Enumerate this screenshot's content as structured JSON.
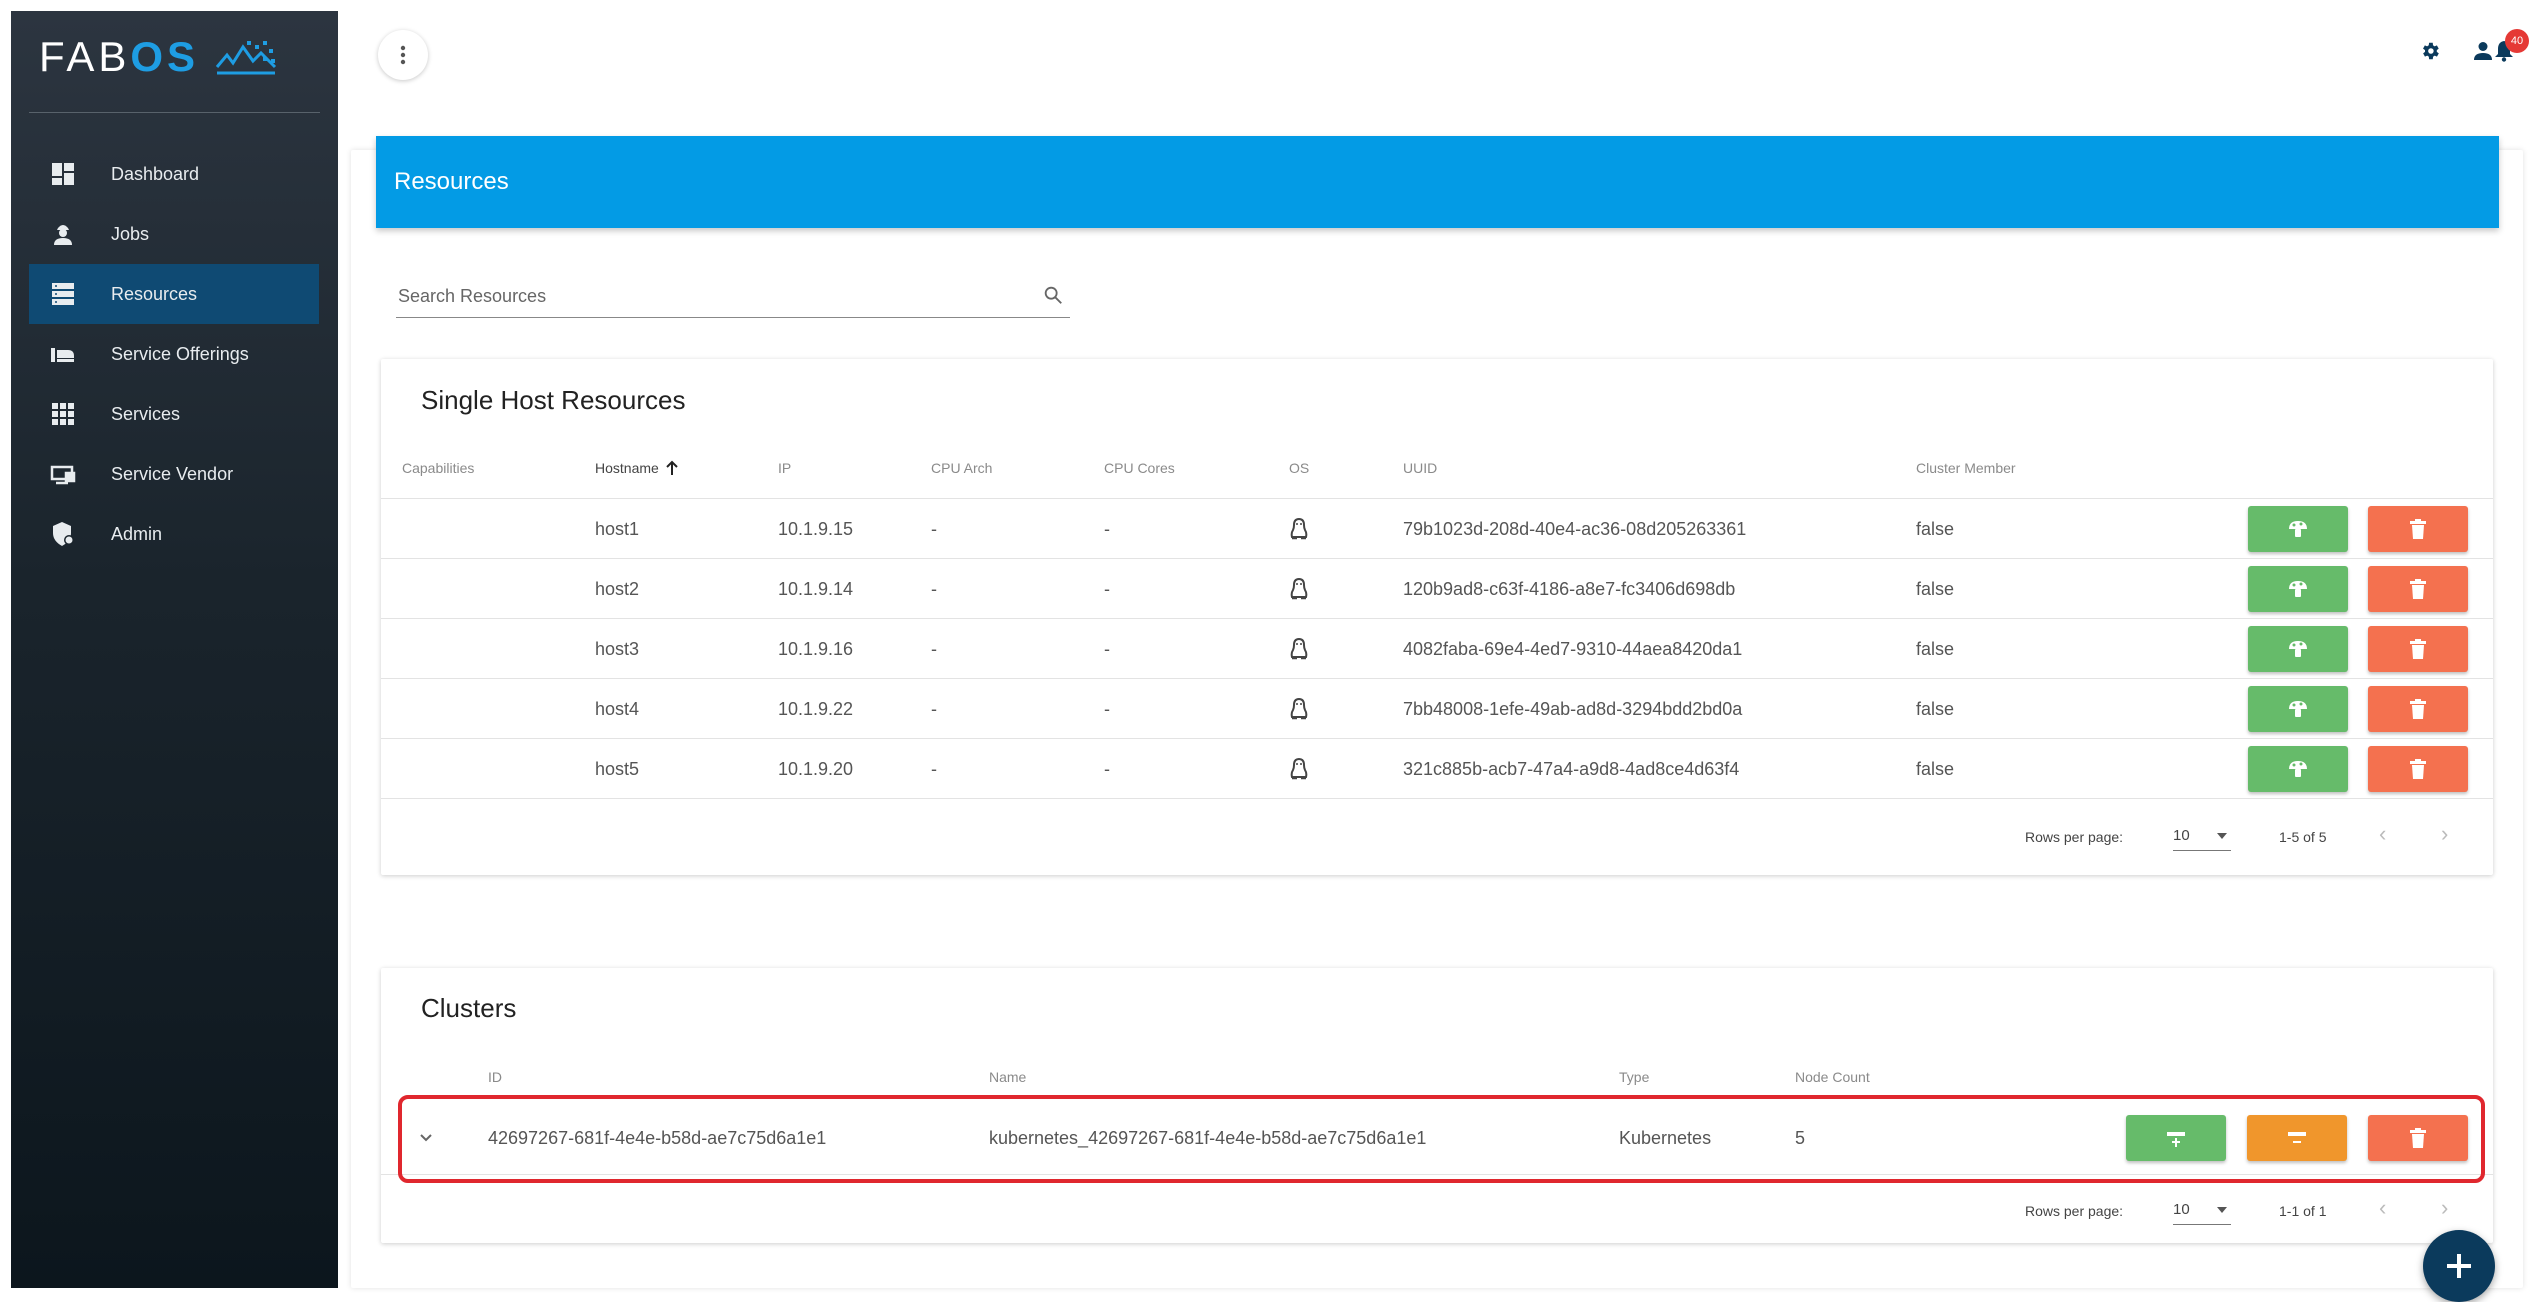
{
  "brand": {
    "logo_main": "FAB",
    "logo_accent": "OS"
  },
  "nav": {
    "items": [
      {
        "label": "Dashboard",
        "icon": "dashboard-icon"
      },
      {
        "label": "Jobs",
        "icon": "worker-icon"
      },
      {
        "label": "Resources",
        "icon": "server-icon",
        "active": true
      },
      {
        "label": "Service Offerings",
        "icon": "offering-icon"
      },
      {
        "label": "Services",
        "icon": "grid-icon"
      },
      {
        "label": "Service Vendor",
        "icon": "vendor-icon"
      },
      {
        "label": "Admin",
        "icon": "admin-shield-icon"
      }
    ]
  },
  "topbar": {
    "notification_count": "40"
  },
  "page": {
    "title": "Resources"
  },
  "search": {
    "placeholder": "Search Resources"
  },
  "single_host": {
    "title": "Single Host Resources",
    "columns": [
      "Capabilities",
      "Hostname",
      "IP",
      "CPU Arch",
      "CPU Cores",
      "OS",
      "UUID",
      "Cluster Member"
    ],
    "rows": [
      {
        "capabilities": "",
        "hostname": "host1",
        "ip": "10.1.9.15",
        "cpu_arch": "-",
        "cpu_cores": "-",
        "os": "linux-icon",
        "uuid": "79b1023d-208d-40e4-ac36-08d205263361",
        "cluster_member": "false"
      },
      {
        "capabilities": "",
        "hostname": "host2",
        "ip": "10.1.9.14",
        "cpu_arch": "-",
        "cpu_cores": "-",
        "os": "linux-icon",
        "uuid": "120b9ad8-c63f-4186-a8e7-fc3406d698db",
        "cluster_member": "false"
      },
      {
        "capabilities": "",
        "hostname": "host3",
        "ip": "10.1.9.16",
        "cpu_arch": "-",
        "cpu_cores": "-",
        "os": "linux-icon",
        "uuid": "4082faba-69e4-4ed7-9310-44aea8420da1",
        "cluster_member": "false"
      },
      {
        "capabilities": "",
        "hostname": "host4",
        "ip": "10.1.9.22",
        "cpu_arch": "-",
        "cpu_cores": "-",
        "os": "linux-icon",
        "uuid": "7bb48008-1efe-49ab-ad8d-3294bdd2bd0a",
        "cluster_member": "false"
      },
      {
        "capabilities": "",
        "hostname": "host5",
        "ip": "10.1.9.20",
        "cpu_arch": "-",
        "cpu_cores": "-",
        "os": "linux-icon",
        "uuid": "321c885b-acb7-47a4-a9d8-4ad8ce4d63f4",
        "cluster_member": "false"
      }
    ],
    "footer": {
      "rows_per_page_label": "Rows per page:",
      "rows_per_page": "10",
      "range": "1-5 of 5"
    }
  },
  "clusters": {
    "title": "Clusters",
    "columns": [
      "ID",
      "Name",
      "Type",
      "Node Count"
    ],
    "rows": [
      {
        "id": "42697267-681f-4e4e-b58d-ae7c75d6a1e1",
        "name": "kubernetes_42697267-681f-4e4e-b58d-ae7c75d6a1e1",
        "type": "Kubernetes",
        "node_count": "5"
      }
    ],
    "footer": {
      "rows_per_page_label": "Rows per page:",
      "rows_per_page": "10",
      "range": "1-1 of 1"
    }
  },
  "colors": {
    "accent": "#039be5",
    "active_nav": "#0f4a73",
    "green": "#66bb6a",
    "red": "#f4714f",
    "orange": "#f0962c",
    "highlight": "#e0272e"
  }
}
